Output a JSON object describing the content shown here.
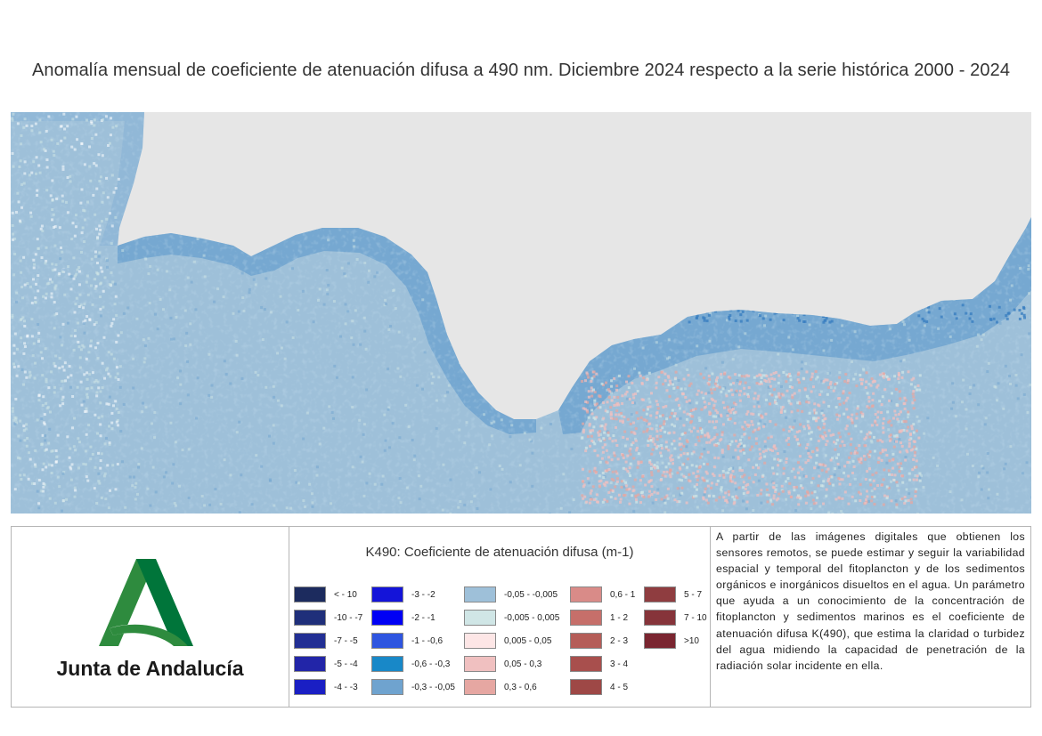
{
  "title": "Anomalía mensual de coeficiente de atenuación difusa a 490 nm. Diciembre 2024 respecto a la serie histórica 2000 - 2024",
  "logo": {
    "text": "Junta de Andalucía",
    "color_primary": "#2e8b3e",
    "color_secondary": "#00753a"
  },
  "map": {
    "land_color": "#e6e6e6",
    "sea_base_color": "#9ec0d9",
    "coastal_color": "#6fa3cf",
    "deep_coastal_color": "#3a7ec0",
    "positive_anomaly_color": "#f0c0c0",
    "near_zero_color": "#d0e6e6"
  },
  "legend": {
    "title": "K490: Coeficiente de atenuación difusa (m-1)",
    "items": [
      {
        "label": "< - 10",
        "color": "#1c2b5e"
      },
      {
        "label": "-10 - -7",
        "color": "#1f2f7a"
      },
      {
        "label": "-7 - -5",
        "color": "#222f94"
      },
      {
        "label": "-5 - -4",
        "color": "#2225a8"
      },
      {
        "label": "-4 - -3",
        "color": "#1a1fc4"
      },
      {
        "label": "-3 - -2",
        "color": "#1414d9"
      },
      {
        "label": "-2 - -1",
        "color": "#0000f5"
      },
      {
        "label": "-1 - -0,6",
        "color": "#2e55e0"
      },
      {
        "label": "-0,6 - -0,3",
        "color": "#1888c8"
      },
      {
        "label": "-0,3 - -0,05",
        "color": "#6fa3cf"
      },
      {
        "label": "-0,05 - -0,005",
        "color": "#9ec0d9"
      },
      {
        "label": "-0,005 - 0,005",
        "color": "#d0e6e6"
      },
      {
        "label": "0,005 - 0,05",
        "color": "#fde6e6"
      },
      {
        "label": "0,05 - 0,3",
        "color": "#f0c0c0"
      },
      {
        "label": "0,3 - 0,6",
        "color": "#e6a7a2"
      },
      {
        "label": "0,6 - 1",
        "color": "#d98b88"
      },
      {
        "label": "1 - 2",
        "color": "#c66f6a"
      },
      {
        "label": "2 - 3",
        "color": "#b55d58"
      },
      {
        "label": "3 - 4",
        "color": "#a84f4d"
      },
      {
        "label": "4 - 5",
        "color": "#9e4846"
      },
      {
        "label": "5 - 7",
        "color": "#8f3d40"
      },
      {
        "label": "7 - 10",
        "color": "#86343a"
      },
      {
        "label": ">10",
        "color": "#7a2530"
      }
    ]
  },
  "description": "A partir de las imágenes digitales que obtienen los sensores remotos, se puede estimar y seguir la variabilidad espacial y temporal del fitoplancton y de los sedimentos orgánicos e inorgánicos disueltos en el agua. Un parámetro que ayuda a un conocimiento de la concentración de fitoplancton y sedimentos marinos es el coeficiente de atenuación difusa K(490), que estima la claridad o turbidez del agua midiendo la capacidad de penetración de la radiación solar incidente en ella."
}
